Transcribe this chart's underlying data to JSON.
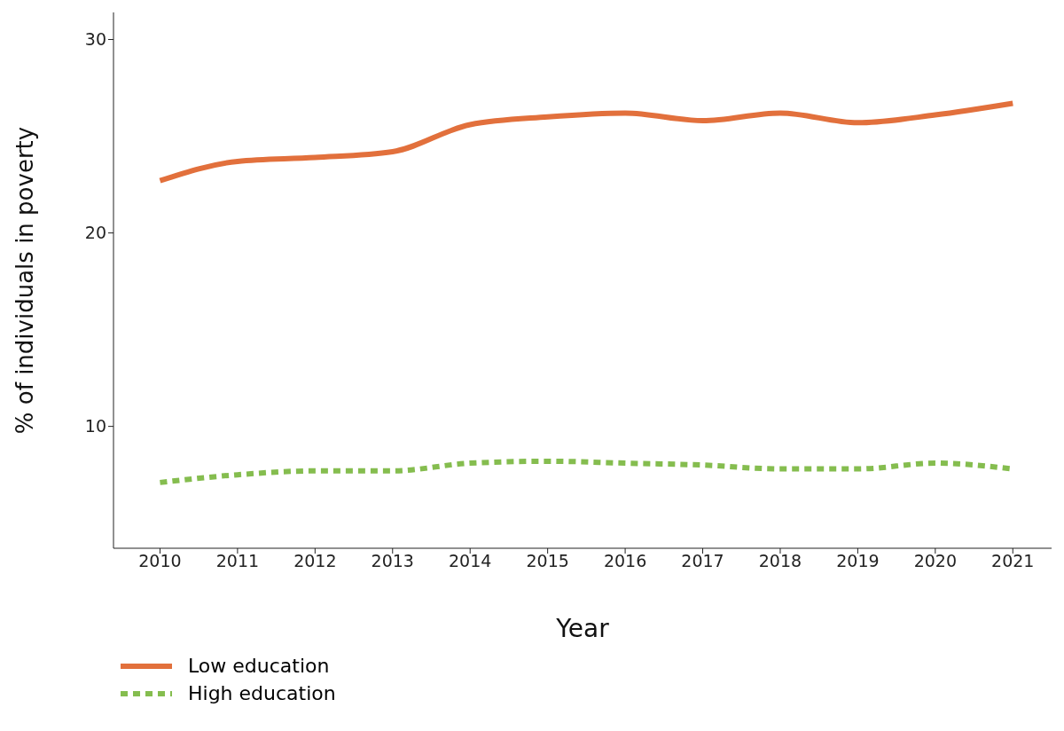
{
  "chart_data": {
    "type": "line",
    "xlabel": "Year",
    "ylabel": "% of individuals in poverty",
    "x": [
      2010,
      2011,
      2012,
      2013,
      2014,
      2015,
      2016,
      2017,
      2018,
      2019,
      2020,
      2021
    ],
    "series": [
      {
        "name": "Low education",
        "color": "#e2703c",
        "line_style": "solid",
        "values": [
          22.7,
          23.7,
          23.9,
          24.2,
          25.6,
          26.0,
          26.2,
          25.8,
          26.2,
          25.7,
          26.1,
          26.7
        ]
      },
      {
        "name": "High education",
        "color": "#85bd4f",
        "line_style": "dotted",
        "values": [
          7.1,
          7.5,
          7.7,
          7.7,
          8.1,
          8.2,
          8.1,
          8.0,
          7.8,
          7.8,
          8.1,
          7.8
        ]
      }
    ],
    "xlim": [
      2009.4,
      2021.5
    ],
    "xticks": [
      2010,
      2011,
      2012,
      2013,
      2014,
      2015,
      2016,
      2017,
      2018,
      2019,
      2020,
      2021
    ],
    "ylim": [
      3.7,
      31.4
    ],
    "yticks": [
      10,
      20,
      30
    ],
    "grid": false,
    "legend": "bottom left",
    "marker": "none"
  }
}
